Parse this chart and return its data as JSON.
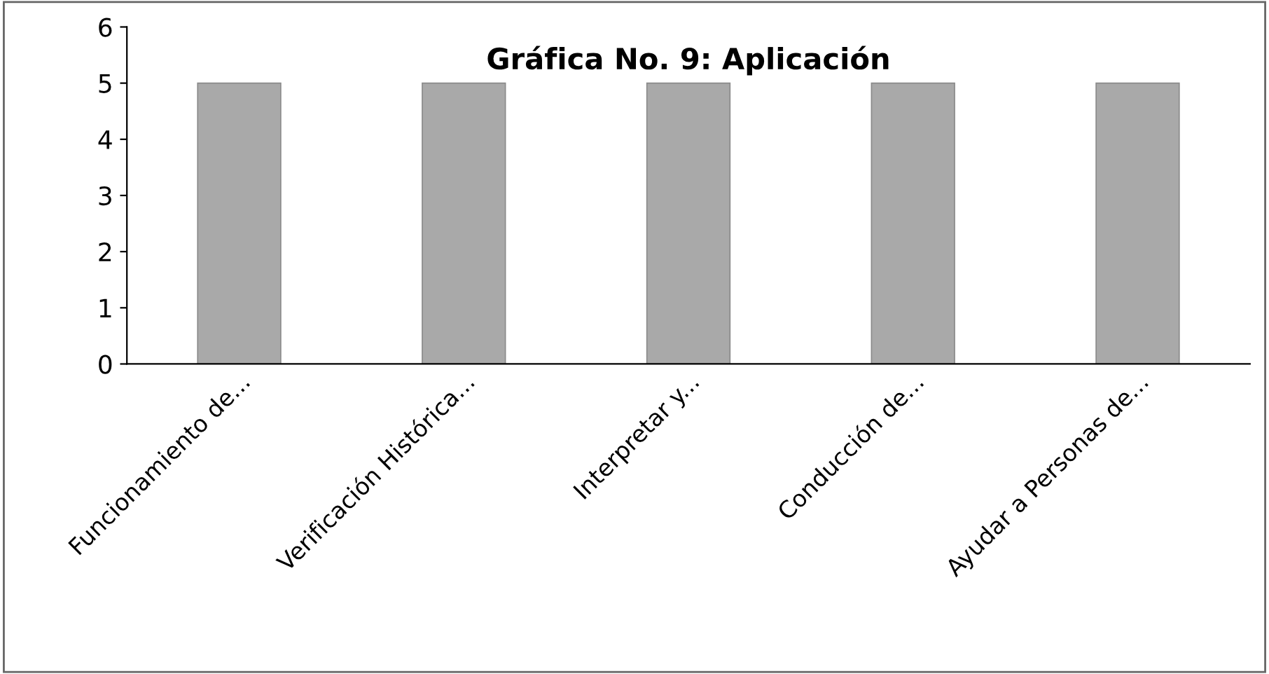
{
  "chart_data": {
    "type": "bar",
    "title": "Gráfica No. 9: Aplicación",
    "categories": [
      "Funcionamiento de...",
      "Verificación Histórica...",
      "Interpretar y...",
      "Conducción de...",
      "Ayudar a Personas de..."
    ],
    "values": [
      5,
      5,
      5,
      5,
      5
    ],
    "color": "#a9a9a9",
    "ylim": [
      0,
      6
    ],
    "yticks": [
      0,
      1,
      2,
      3,
      4,
      5,
      6
    ],
    "grid": false,
    "legend": false
  }
}
